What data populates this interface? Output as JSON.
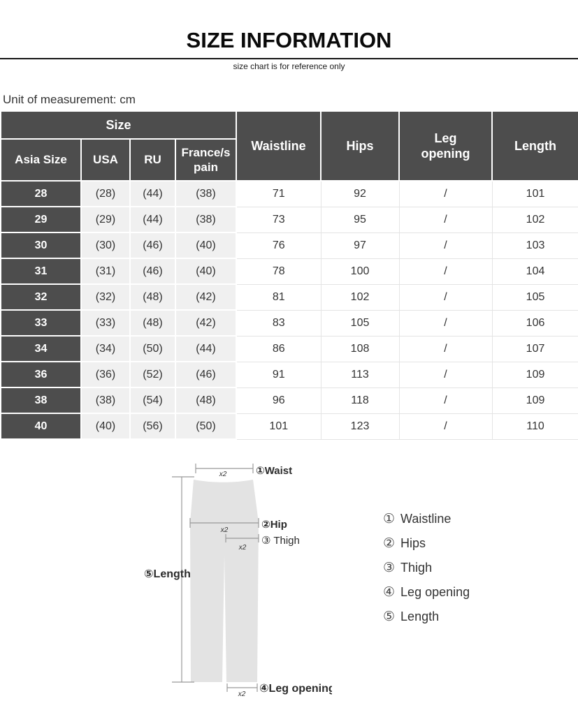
{
  "header": {
    "title": "SIZE INFORMATION",
    "subtitle": "size chart is for reference only",
    "unit_note": "Unit of measurement: cm"
  },
  "table": {
    "group_header": "Size",
    "columns": [
      "Asia Size",
      "USA",
      "RU",
      "France/s\npain",
      "Waistline",
      "Hips",
      "Leg\nopening",
      "Length"
    ],
    "rows": [
      [
        "28",
        "(28)",
        "(44)",
        "(38)",
        "71",
        "92",
        "/",
        "101"
      ],
      [
        "29",
        "(29)",
        "(44)",
        "(38)",
        "73",
        "95",
        "/",
        "102"
      ],
      [
        "30",
        "(30)",
        "(46)",
        "(40)",
        "76",
        "97",
        "/",
        "103"
      ],
      [
        "31",
        "(31)",
        "(46)",
        "(40)",
        "78",
        "100",
        "/",
        "104"
      ],
      [
        "32",
        "(32)",
        "(48)",
        "(42)",
        "81",
        "102",
        "/",
        "105"
      ],
      [
        "33",
        "(33)",
        "(48)",
        "(42)",
        "83",
        "105",
        "/",
        "106"
      ],
      [
        "34",
        "(34)",
        "(50)",
        "(44)",
        "86",
        "108",
        "/",
        "107"
      ],
      [
        "36",
        "(36)",
        "(52)",
        "(46)",
        "91",
        "113",
        "/",
        "109"
      ],
      [
        "38",
        "(38)",
        "(54)",
        "(48)",
        "96",
        "118",
        "/",
        "109"
      ],
      [
        "40",
        "(40)",
        "(56)",
        "(50)",
        "101",
        "123",
        "/",
        "110"
      ]
    ]
  },
  "diagram": {
    "x2_label": "x2",
    "waist_label": "①Waist",
    "hip_label": "②Hip",
    "thigh_label": "③ Thigh",
    "leg_opening_label": "④Leg opening",
    "length_label": "⑤Length"
  },
  "legend": {
    "items": [
      {
        "num": "①",
        "label": "Waistline"
      },
      {
        "num": "②",
        "label": "Hips"
      },
      {
        "num": "③",
        "label": "Thigh"
      },
      {
        "num": "④",
        "label": "Leg opening"
      },
      {
        "num": "⑤",
        "label": "Length"
      }
    ]
  },
  "colors": {
    "header_bg": "#4d4d4d",
    "shade_bg": "#f0f0f0",
    "pants_fill": "#e3e3e3",
    "grid_line": "#e4e4e4",
    "measure_line": "#999999",
    "text_dark": "#333333"
  }
}
